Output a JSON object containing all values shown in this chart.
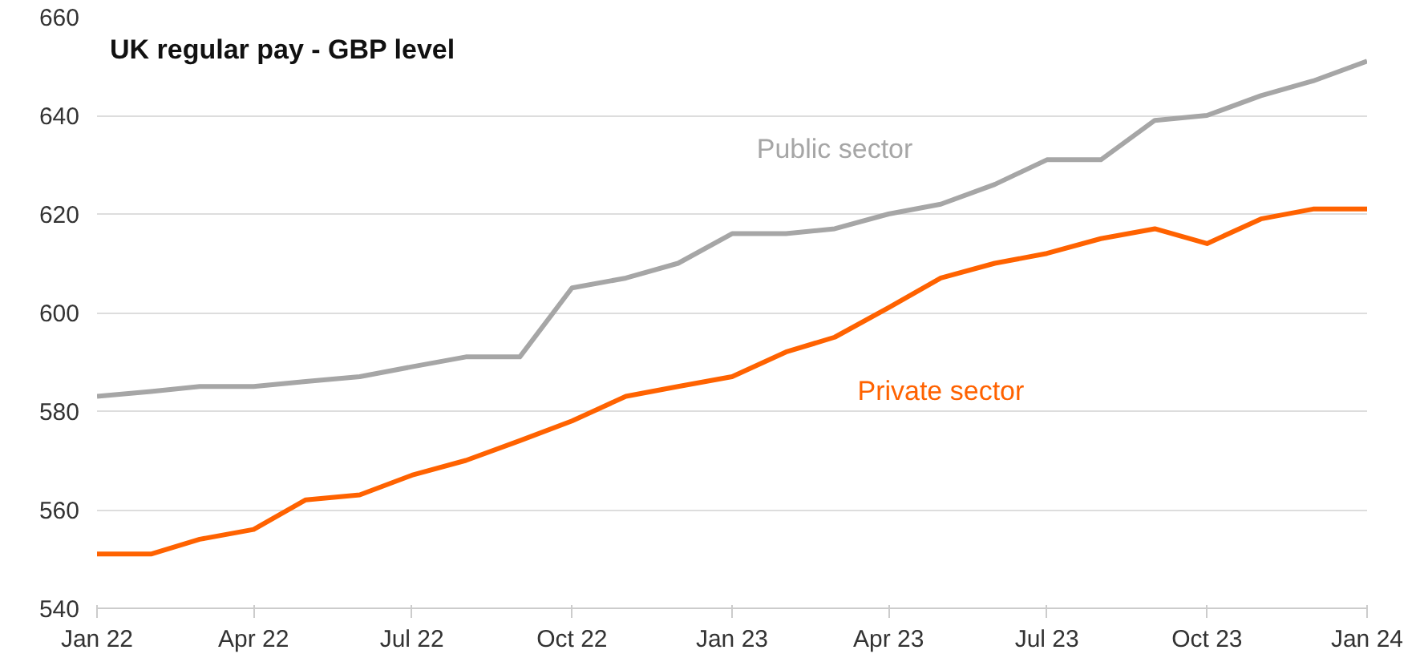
{
  "chart_data": {
    "type": "line",
    "title": "UK regular pay - GBP level",
    "x": [
      "2022-01",
      "2022-02",
      "2022-03",
      "2022-04",
      "2022-05",
      "2022-06",
      "2022-07",
      "2022-08",
      "2022-09",
      "2022-10",
      "2022-11",
      "2022-12",
      "2023-01",
      "2023-02",
      "2023-03",
      "2023-04",
      "2023-05",
      "2023-06",
      "2023-07",
      "2023-08",
      "2023-09",
      "2023-10",
      "2023-11",
      "2023-12",
      "2024-01"
    ],
    "series": [
      {
        "name": "Public sector",
        "color": "#a6a6a6",
        "values": [
          583,
          584,
          585,
          585,
          586,
          587,
          589,
          591,
          591,
          605,
          607,
          610,
          616,
          616,
          617,
          620,
          622,
          626,
          631,
          631,
          639,
          640,
          644,
          647,
          651
        ]
      },
      {
        "name": "Private sector",
        "color": "#ff6200",
        "values": [
          551,
          551,
          554,
          556,
          562,
          563,
          567,
          570,
          574,
          578,
          583,
          585,
          587,
          592,
          595,
          601,
          607,
          610,
          612,
          615,
          617,
          614,
          619,
          621,
          621
        ]
      }
    ],
    "xlim": [
      "2022-01",
      "2024-01"
    ],
    "xticks": [
      {
        "value": "2022-01",
        "label": "Jan 22"
      },
      {
        "value": "2022-04",
        "label": "Apr 22"
      },
      {
        "value": "2022-07",
        "label": "Jul 22"
      },
      {
        "value": "2022-10",
        "label": "Oct 22"
      },
      {
        "value": "2023-01",
        "label": "Jan 23"
      },
      {
        "value": "2023-04",
        "label": "Apr 23"
      },
      {
        "value": "2023-07",
        "label": "Jul 23"
      },
      {
        "value": "2023-10",
        "label": "Oct 23"
      },
      {
        "value": "2024-01",
        "label": "Jan 24"
      }
    ],
    "ylim": [
      540,
      660
    ],
    "yticks": [
      540,
      560,
      580,
      600,
      620,
      640,
      660
    ],
    "grid": "y",
    "legend": false,
    "line_style": "solid"
  }
}
